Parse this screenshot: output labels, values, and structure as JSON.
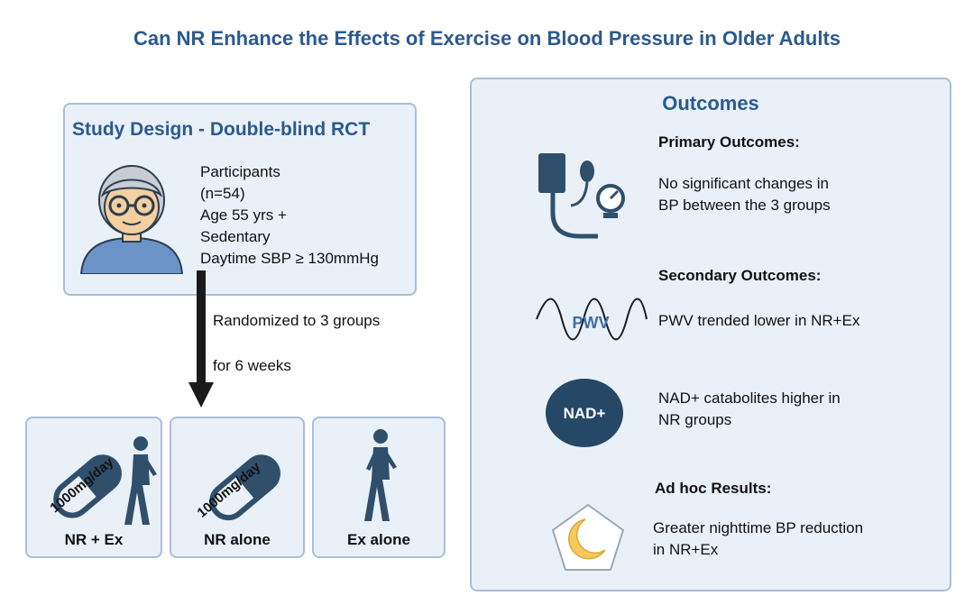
{
  "title": "Can NR Enhance the Effects of Exercise on Blood Pressure in Older Adults",
  "study_design": {
    "title": "Study Design - Double-blind RCT",
    "participant_lines": [
      "Participants",
      "(n=54)",
      "Age 55 yrs +",
      "Sedentary",
      "Daytime SBP ≥ 130mmHg"
    ]
  },
  "randomization": {
    "line1": "Randomized to 3 groups",
    "line2": "for 6 weeks"
  },
  "groups": [
    {
      "label": "NR + Ex",
      "dose": "1000mg/day"
    },
    {
      "label": "NR alone",
      "dose": "1000mg/day"
    },
    {
      "label": "Ex alone"
    }
  ],
  "outcomes": {
    "title": "Outcomes",
    "primary_heading": "Primary Outcomes:",
    "primary_lines": [
      "No significant changes in",
      "BP between the 3 groups"
    ],
    "secondary_heading": "Secondary Outcomes:",
    "pwv_icon_label": "PWV",
    "pwv_line": "PWV trended lower in NR+Ex",
    "nad_icon_label": "NAD+",
    "nad_lines": [
      "NAD+ catabolites higher in",
      "NR groups"
    ],
    "adhoc_heading": "Ad hoc Results:",
    "adhoc_lines": [
      "Greater nighttime BP reduction",
      "in NR+Ex"
    ]
  },
  "colors": {
    "title_blue": "#2b5a8f",
    "box_fill": "#eaf0f8",
    "box_border": "#a9bedb",
    "icon_dark": "#2f4f6b",
    "nad_circle": "#244866",
    "moon": "#f4c95d"
  },
  "icons": [
    "person-avatar-icon",
    "down-arrow-icon",
    "pill-icon",
    "walking-person-icon",
    "blood-pressure-cuff-icon",
    "pwv-wave-icon",
    "nad-circle-icon",
    "moon-icon"
  ]
}
